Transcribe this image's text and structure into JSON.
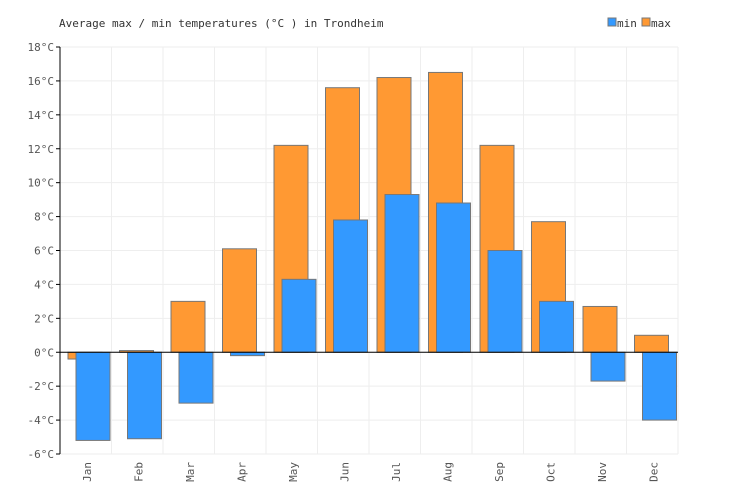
{
  "chart_data": {
    "type": "bar",
    "title": "Average max / min temperatures (°C ) in Trondheim",
    "categories": [
      "Jan",
      "Feb",
      "Mar",
      "Apr",
      "May",
      "Jun",
      "Jul",
      "Aug",
      "Sep",
      "Oct",
      "Nov",
      "Dec"
    ],
    "series": [
      {
        "name": "max",
        "color": "#ff9933",
        "values": [
          -0.4,
          0.1,
          3.0,
          6.1,
          12.2,
          15.6,
          16.2,
          16.5,
          12.2,
          7.7,
          2.7,
          1.0
        ]
      },
      {
        "name": "min",
        "color": "#3399ff",
        "values": [
          -5.2,
          -5.1,
          -3.0,
          -0.2,
          4.3,
          7.8,
          9.3,
          8.8,
          6.0,
          3.0,
          -1.7,
          -4.0
        ]
      }
    ],
    "ylim": [
      -6,
      18
    ],
    "yticks": [
      "-6°C",
      "-4°C",
      "-2°C",
      "0°C",
      "2°C",
      "4°C",
      "6°C",
      "8°C",
      "10°C",
      "12°C",
      "14°C",
      "16°C",
      "18°C"
    ],
    "ytick_values": [
      -6,
      -4,
      -2,
      0,
      2,
      4,
      6,
      8,
      10,
      12,
      14,
      16,
      18
    ],
    "grid": true,
    "legend": "top-right"
  }
}
